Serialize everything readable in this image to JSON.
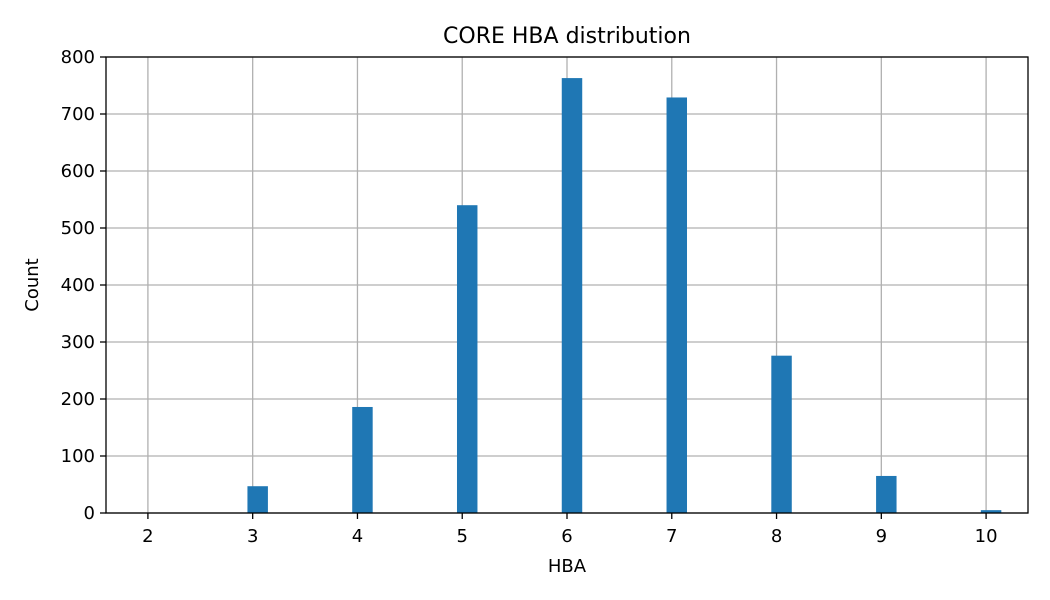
{
  "chart_data": {
    "type": "bar",
    "title": "CORE HBA distribution",
    "xlabel": "HBA",
    "ylabel": "Count",
    "x": [
      2,
      3,
      4,
      5,
      6,
      7,
      8,
      9,
      10
    ],
    "values": [
      0,
      47,
      186,
      540,
      763,
      729,
      276,
      65,
      5
    ],
    "xticks": [
      2,
      3,
      4,
      5,
      6,
      7,
      8,
      9,
      10
    ],
    "yticks": [
      0,
      100,
      200,
      300,
      400,
      500,
      600,
      700,
      800
    ],
    "xlim": [
      1.6,
      10.4
    ],
    "ylim": [
      0,
      800
    ],
    "grid": true,
    "bar_color": "#1f77b4",
    "grid_color": "#b0b0b0"
  }
}
